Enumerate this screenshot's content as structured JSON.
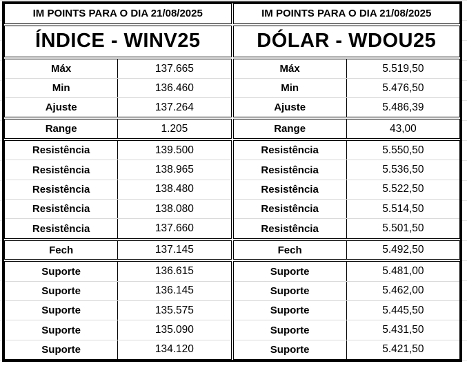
{
  "panels": [
    {
      "header": "IM POINTS PARA O DIA 21/08/2025",
      "title": "ÍNDICE - WINV25",
      "stats": [
        {
          "label": "Máx",
          "value": "137.665"
        },
        {
          "label": "Min",
          "value": "136.460"
        },
        {
          "label": "Ajuste",
          "value": "137.264"
        }
      ],
      "range": {
        "label": "Range",
        "value": "1.205"
      },
      "resistances": [
        {
          "label": "Resistência",
          "value": "139.500"
        },
        {
          "label": "Resistência",
          "value": "138.965"
        },
        {
          "label": "Resistência",
          "value": "138.480"
        },
        {
          "label": "Resistência",
          "value": "138.080"
        },
        {
          "label": "Resistência",
          "value": "137.660"
        }
      ],
      "close": {
        "label": "Fech",
        "value": "137.145"
      },
      "supports": [
        {
          "label": "Suporte",
          "value": "136.615"
        },
        {
          "label": "Suporte",
          "value": "136.145"
        },
        {
          "label": "Suporte",
          "value": "135.575"
        },
        {
          "label": "Suporte",
          "value": "135.090"
        },
        {
          "label": "Suporte",
          "value": "134.120"
        }
      ]
    },
    {
      "header": "IM POINTS PARA O DIA 21/08/2025",
      "title": "DÓLAR - WDOU25",
      "stats": [
        {
          "label": "Máx",
          "value": "5.519,50"
        },
        {
          "label": "Min",
          "value": "5.476,50"
        },
        {
          "label": "Ajuste",
          "value": "5.486,39"
        }
      ],
      "range": {
        "label": "Range",
        "value": "43,00"
      },
      "resistances": [
        {
          "label": "Resistência",
          "value": "5.550,50"
        },
        {
          "label": "Resistência",
          "value": "5.536,50"
        },
        {
          "label": "Resistência",
          "value": "5.522,50"
        },
        {
          "label": "Resistência",
          "value": "5.514,50"
        },
        {
          "label": "Resistência",
          "value": "5.501,50"
        }
      ],
      "close": {
        "label": "Fech",
        "value": "5.492,50"
      },
      "supports": [
        {
          "label": "Suporte",
          "value": "5.481,00"
        },
        {
          "label": "Suporte",
          "value": "5.462,00"
        },
        {
          "label": "Suporte",
          "value": "5.445,50"
        },
        {
          "label": "Suporte",
          "value": "5.431,50"
        },
        {
          "label": "Suporte",
          "value": "5.421,50"
        }
      ]
    }
  ]
}
